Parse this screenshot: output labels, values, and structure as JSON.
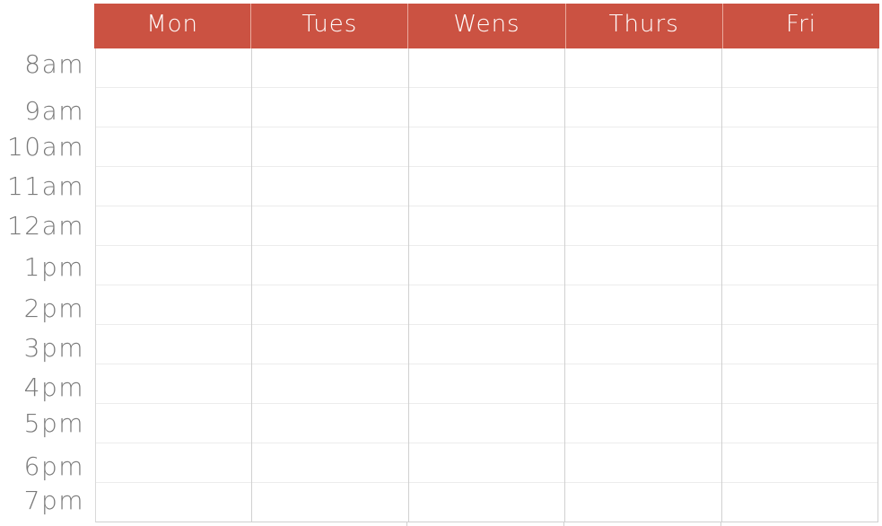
{
  "schedule": {
    "days": [
      "Mon",
      "Tues",
      "Wens",
      "Thurs",
      "Fri"
    ],
    "times": [
      "8am",
      "9am",
      "10am",
      "11am",
      "12am",
      "1pm",
      "2pm",
      "3pm",
      "4pm",
      "5pm",
      "6pm",
      "7pm"
    ],
    "colors": {
      "header_background": "#cb5242",
      "header_text": "#ffffff",
      "time_text": "#7a7a7a",
      "grid_lines": "#d0d0d0"
    }
  }
}
